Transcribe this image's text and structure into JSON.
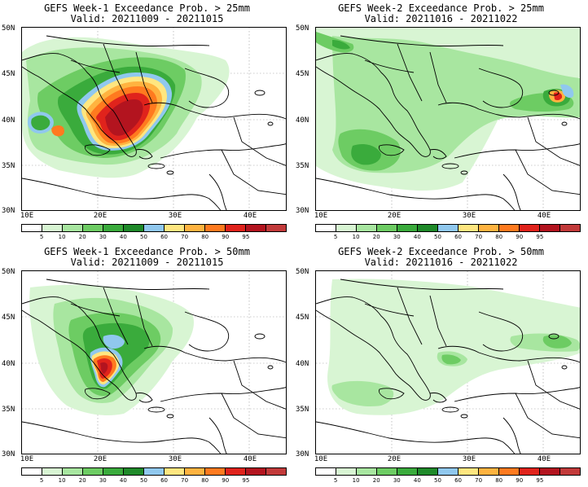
{
  "panels": [
    {
      "title_line1": "GEFS Week-1 Exceedance Prob. > 25mm",
      "title_line2": "Valid: 20211009 - 20211015"
    },
    {
      "title_line1": "GEFS Week-2 Exceedance Prob. > 25mm",
      "title_line2": "Valid: 20211016 - 20211022"
    },
    {
      "title_line1": "GEFS Week-1 Exceedance Prob. > 50mm",
      "title_line2": "Valid: 20211009 - 20211015"
    },
    {
      "title_line1": "GEFS Week-2 Exceedance Prob. > 50mm",
      "title_line2": "Valid: 20211016 - 20211022"
    }
  ],
  "axes": {
    "lat_labels": [
      "50N",
      "45N",
      "40N",
      "35N",
      "30N"
    ],
    "lon_labels": [
      "10E",
      "20E",
      "30E",
      "40E"
    ]
  },
  "colorbar": {
    "colors": [
      "#ffffff",
      "#d8f5d3",
      "#a8e6a0",
      "#6dcc63",
      "#3aab3c",
      "#1f8a2a",
      "#90c8ee",
      "#ffe680",
      "#ffb340",
      "#ff7a1f",
      "#e0231c",
      "#b3141f",
      "#c23a3a"
    ],
    "tick_labels": [
      "5",
      "10",
      "20",
      "30",
      "40",
      "50",
      "60",
      "70",
      "80",
      "90",
      "95"
    ]
  }
}
